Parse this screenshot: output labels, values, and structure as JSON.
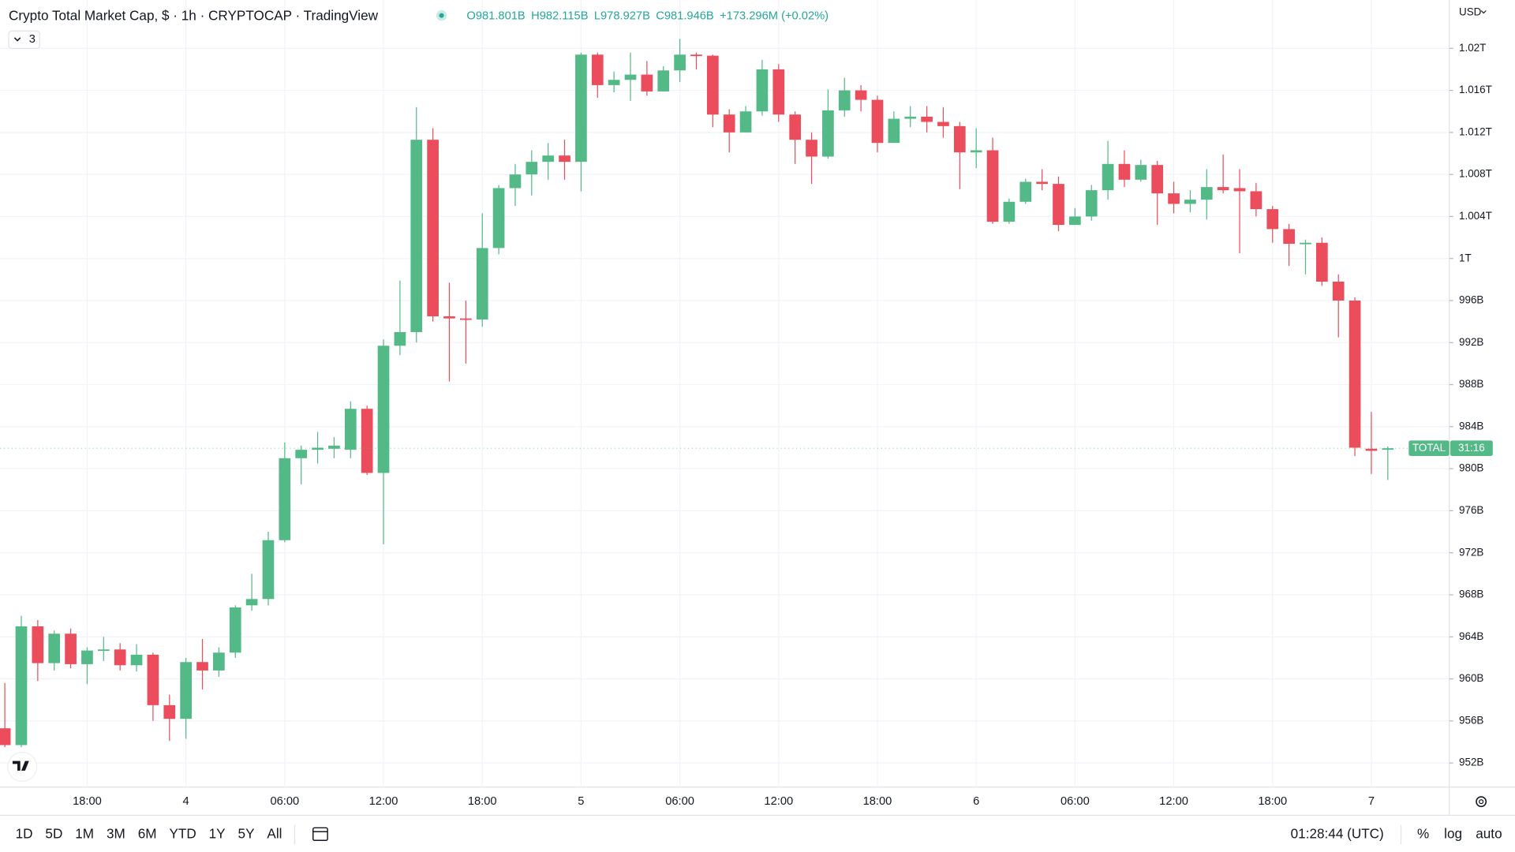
{
  "chart_data": {
    "type": "candlestick",
    "title": "Crypto Total Market Cap, $ · 1h · CRYPTOCAP · TradingView",
    "legend": [
      "O981.801B",
      "H982.115B",
      "L978.927B",
      "C981.946B",
      "+173.296M (+0.02%)"
    ],
    "indicator_count": "3",
    "currency": "USD",
    "price_tag": {
      "symbol": "TOTAL",
      "countdown": "31:16"
    },
    "up_color": "#53b987",
    "down_color": "#eb4d5c",
    "grid": true,
    "categories": [
      null,
      null,
      null,
      null,
      null,
      "18:00",
      null,
      null,
      null,
      null,
      null,
      "4",
      null,
      null,
      null,
      null,
      null,
      "06:00",
      null,
      null,
      null,
      null,
      null,
      "12:00",
      null,
      null,
      null,
      null,
      null,
      "18:00",
      null,
      null,
      null,
      null,
      null,
      "5",
      null,
      null,
      null,
      null,
      null,
      "06:00",
      null,
      null,
      null,
      null,
      null,
      "12:00",
      null,
      null,
      null,
      null,
      null,
      "18:00",
      null,
      null,
      null,
      null,
      null,
      "6",
      null,
      null,
      null,
      null,
      null,
      "06:00",
      null,
      null,
      null,
      null,
      null,
      "12:00",
      null,
      null,
      null,
      null,
      null,
      "18:00",
      null,
      null,
      null,
      null,
      null,
      "7",
      null
    ],
    "open": [
      955.3,
      953.7,
      965,
      961.5,
      964.3,
      961.4,
      962.7,
      962.8,
      961.3,
      962.3,
      957.5,
      956.2,
      961.6,
      960.8,
      962.5,
      967,
      967.6,
      973.2,
      981,
      981.8,
      981.9,
      981.8,
      985.7,
      979.6,
      991.7,
      993,
      1011.3,
      994.5,
      994.3,
      994.2,
      1001,
      1006.7,
      1008,
      1009.2,
      1009.8,
      1009.2,
      1019.4,
      1016.5,
      1017,
      1017.5,
      1015.9,
      1017.9,
      1019.4,
      1019.3,
      1013.7,
      1012,
      1014,
      1018,
      1013.7,
      1011.3,
      1009.7,
      1014.1,
      1016,
      1015.1,
      1011,
      1013.3,
      1013.5,
      1013,
      1012.6,
      1010.1,
      1010.3,
      1003.5,
      1005.4,
      1007.3,
      1007.1,
      1003.2,
      1004,
      1006.5,
      1009,
      1007.5,
      1008.9,
      1006.2,
      1005.2,
      1005.6,
      1006.8,
      1006.7,
      1006.4,
      1004.7,
      1002.8,
      1001.4,
      1001.5,
      997.8,
      996,
      981.9,
      981.801
    ],
    "high": [
      959.6,
      966,
      965.6,
      964.6,
      964.8,
      963,
      964,
      963.4,
      963.3,
      962.5,
      958.5,
      962,
      963.8,
      963,
      967,
      970,
      974,
      982.5,
      982.2,
      983.5,
      983,
      986.4,
      986,
      992.3,
      997.9,
      1014.4,
      1012.4,
      997.7,
      996,
      1004.3,
      1007,
      1009,
      1010.3,
      1011,
      1011.3,
      1019.6,
      1019.6,
      1017.8,
      1019.6,
      1018.8,
      1018.3,
      1020.9,
      1019.6,
      1019.4,
      1014.2,
      1014.5,
      1018.9,
      1018.5,
      1014,
      1012,
      1016.1,
      1017.2,
      1016.5,
      1015.5,
      1014,
      1014.5,
      1014.5,
      1014.4,
      1013,
      1012.4,
      1011.5,
      1005.7,
      1007.6,
      1008.5,
      1007.8,
      1004.8,
      1007,
      1011.2,
      1010.3,
      1009.4,
      1009.3,
      1007.3,
      1006.5,
      1008.5,
      1009.9,
      1008.5,
      1007.2,
      1005,
      1003.3,
      1001.8,
      1002,
      998.5,
      996.3,
      985.4,
      982.115
    ],
    "low": [
      953.5,
      953.5,
      959.8,
      960.8,
      961,
      959.5,
      961.7,
      960.8,
      960.7,
      956,
      954.1,
      954.3,
      959,
      960.2,
      962,
      966.5,
      967,
      973,
      978.5,
      980.5,
      981,
      981,
      979.4,
      972.8,
      990.8,
      992,
      994,
      988.3,
      990,
      993.5,
      1000.4,
      1005,
      1006,
      1007.5,
      1007.5,
      1006.4,
      1015.3,
      1015.8,
      1015,
      1015.5,
      1015.9,
      1016.8,
      1018,
      1012.5,
      1010.1,
      1012,
      1013.6,
      1013,
      1009,
      1007.1,
      1009.5,
      1013.5,
      1014,
      1010.1,
      1011,
      1012.5,
      1012,
      1011.5,
      1006.6,
      1008.6,
      1003.3,
      1003.3,
      1005.2,
      1006.5,
      1002.6,
      1003.2,
      1003.6,
      1005.6,
      1006.8,
      1007.3,
      1003.2,
      1004.3,
      1004.4,
      1003.7,
      1006.2,
      1000.5,
      1004,
      1001.5,
      999.3,
      998.5,
      997.4,
      992.5,
      981.2,
      979.5,
      978.927
    ],
    "close": [
      953.7,
      965,
      961.5,
      964.3,
      961.4,
      962.7,
      962.8,
      961.3,
      962.3,
      957.5,
      956.2,
      961.6,
      960.8,
      962.5,
      966.8,
      967.6,
      973.2,
      981,
      981.8,
      982,
      982.2,
      985.7,
      979.6,
      991.7,
      993,
      1011.3,
      994.5,
      994.3,
      994.2,
      1001,
      1006.7,
      1008,
      1009.2,
      1009.8,
      1009.2,
      1019.4,
      1016.5,
      1017,
      1017.5,
      1015.9,
      1017.9,
      1019.4,
      1019.3,
      1013.7,
      1012,
      1014,
      1018,
      1013.7,
      1011.3,
      1009.7,
      1014.1,
      1016,
      1015.1,
      1011,
      1013.3,
      1013.5,
      1013,
      1012.6,
      1010.1,
      1010.3,
      1003.5,
      1005.4,
      1007.3,
      1007.1,
      1003.2,
      1004,
      1006.5,
      1009,
      1007.5,
      1008.9,
      1006.2,
      1005.2,
      1005.6,
      1006.8,
      1006.5,
      1006.4,
      1004.7,
      1002.8,
      1001.4,
      1001.5,
      997.8,
      996,
      982,
      981.7,
      981.946
    ],
    "ylim": [
      949.7,
      1024.6
    ],
    "yticks": [
      {
        "value": 952,
        "label": "952B"
      },
      {
        "value": 956,
        "label": "956B"
      },
      {
        "value": 960,
        "label": "960B"
      },
      {
        "value": 964,
        "label": "964B"
      },
      {
        "value": 968,
        "label": "968B"
      },
      {
        "value": 972,
        "label": "972B"
      },
      {
        "value": 976,
        "label": "976B"
      },
      {
        "value": 980,
        "label": "980B"
      },
      {
        "value": 984,
        "label": "984B"
      },
      {
        "value": 988,
        "label": "988B"
      },
      {
        "value": 992,
        "label": "992B"
      },
      {
        "value": 996,
        "label": "996B"
      },
      {
        "value": 1000,
        "label": "1T"
      },
      {
        "value": 1004,
        "label": "1.004T"
      },
      {
        "value": 1008,
        "label": "1.008T"
      },
      {
        "value": 1012,
        "label": "1.012T"
      },
      {
        "value": 1016,
        "label": "1.016T"
      },
      {
        "value": 1020,
        "label": "1.02T"
      }
    ]
  },
  "toolbar": {
    "ranges": [
      "1D",
      "5D",
      "1M",
      "3M",
      "6M",
      "YTD",
      "1Y",
      "5Y",
      "All"
    ],
    "clock": "01:28:44 (UTC)",
    "percent": "%",
    "log": "log",
    "auto": "auto"
  }
}
